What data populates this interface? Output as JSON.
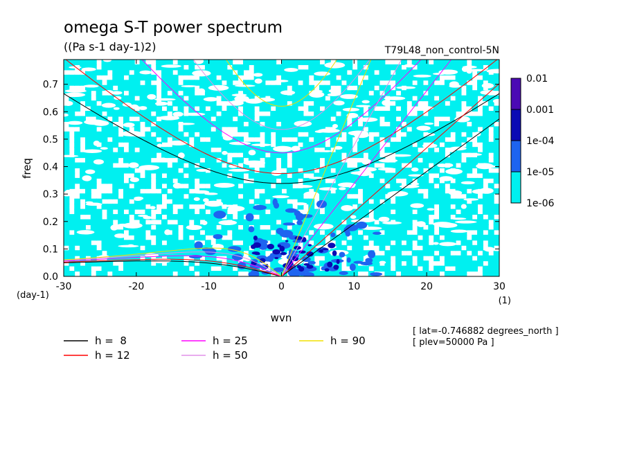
{
  "chart_data": {
    "type": "heatmap",
    "title": "omega S-T power spectrum",
    "subtitle": "((Pa s-1 day-1)2)",
    "run_label": "T79L48_non_control-5N",
    "xlabel": "wvn",
    "ylabel": "freq",
    "x_units": "(1)",
    "y_units": "(day-1)",
    "xlim": [
      -30,
      30
    ],
    "ylim": [
      0,
      0.79
    ],
    "x_ticks": [
      -30,
      -20,
      -10,
      0,
      10,
      20,
      30
    ],
    "x_tick_labels": [
      "-30",
      "-20",
      "-10",
      "0",
      "10",
      "20",
      "30"
    ],
    "y_ticks": [
      0,
      0.1,
      0.2,
      0.3,
      0.4,
      0.5,
      0.6,
      0.7
    ],
    "y_tick_labels": [
      "0.0",
      "0.1",
      "0.2",
      "0.3",
      "0.4",
      "0.5",
      "0.6",
      "0.7"
    ],
    "colorbar": {
      "labels": [
        "0.01",
        "0.001",
        "1e-04",
        "1e-05",
        "1e-06"
      ],
      "colors": [
        "#4b0ab4",
        "#0a0ab4",
        "#1e64f0",
        "#00f0f0"
      ]
    },
    "field_colors": {
      "1e-06": "#00f0f0",
      "1e-05": "#1e64f0",
      "1e-04": "#0a0ab4"
    },
    "dispersion_curves": [
      {
        "label": "h =  8",
        "color": "#000000"
      },
      {
        "label": "h = 12",
        "color": "#ff0000"
      },
      {
        "label": "h = 25",
        "color": "#ff00ff"
      },
      {
        "label": "h = 50",
        "color": "#e090e8"
      },
      {
        "label": "h = 90",
        "color": "#f0e000"
      }
    ],
    "info": [
      "[ lat=-0.746882 degrees_north ]",
      "[ plev=50000 Pa ]"
    ]
  }
}
